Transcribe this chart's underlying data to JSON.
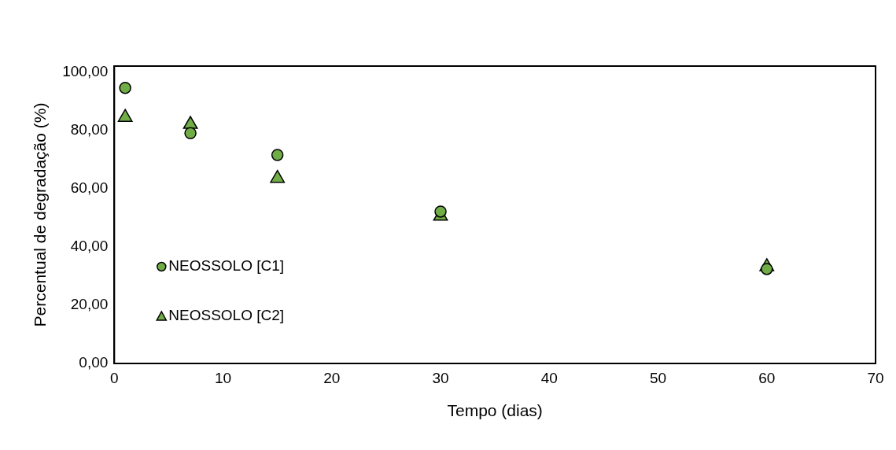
{
  "chart_data": {
    "type": "scatter",
    "xlabel": "Tempo (dias)",
    "ylabel": "Percentual de degradação (%)",
    "xlim": [
      0,
      70
    ],
    "xticks": [
      0,
      10,
      20,
      30,
      40,
      50,
      60,
      70
    ],
    "ylim": [
      0,
      102
    ],
    "yticks": [
      {
        "value": 0,
        "label": "0,00"
      },
      {
        "value": 20,
        "label": "20,00"
      },
      {
        "value": 40,
        "label": "40,00"
      },
      {
        "value": 60,
        "label": "60,00"
      },
      {
        "value": 80,
        "label": "80,00"
      },
      {
        "value": 100,
        "label": "100,00"
      }
    ],
    "grid": false,
    "legend": "bottom left",
    "series": [
      {
        "name": "NEOSSOLO [C1]",
        "color": "#70ad47",
        "marker": "circle",
        "x": [
          1,
          7,
          15,
          30,
          60
        ],
        "values": [
          94.5,
          79.0,
          71.5,
          52.1,
          32.4
        ]
      },
      {
        "name": "NEOSSOLO [C2]",
        "color": "#70ad47",
        "marker": "triangle",
        "x": [
          1,
          7,
          15,
          30,
          60
        ],
        "values": [
          84.4,
          82.0,
          63.5,
          50.5,
          33.2
        ]
      }
    ]
  }
}
